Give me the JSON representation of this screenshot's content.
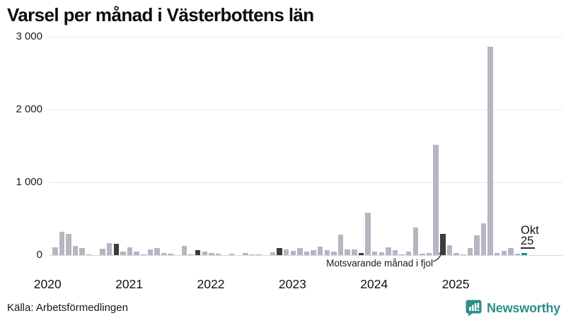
{
  "page": {
    "title": "Varsel per månad i Västerbottens län",
    "source": "Källa: Arbetsförmedlingen",
    "annotation": "Motsvarande månad i fjol",
    "current_month_label": {
      "line1": "Okt",
      "line2": "25"
    },
    "brand": {
      "name": "Newsworthy"
    }
  },
  "colors": {
    "bar": "#b8b4c2",
    "highlight_bar": "#3b3b3d",
    "current_bar": "#13998b",
    "grid": "#e6e6ea",
    "baseline": "#d7d7dc",
    "brand_teal": "#2d8e8b"
  },
  "chart_data": {
    "type": "bar",
    "title": "Varsel per månad i Västerbottens län",
    "xlabel": "",
    "ylabel": "",
    "x_start": "2020-01",
    "x_end": "2025-10",
    "ylim": [
      0,
      3000
    ],
    "grid": true,
    "legend_position": "none",
    "yticks": [
      0,
      1000,
      2000,
      3000
    ],
    "ytick_labels": [
      "0",
      "1 000",
      "2 000",
      "3 000"
    ],
    "year_labels": [
      "2020",
      "2021",
      "2022",
      "2023",
      "2024",
      "2025"
    ],
    "series": [
      {
        "name": "Varsel per månad",
        "values": [
          110,
          320,
          295,
          125,
          100,
          10,
          0,
          90,
          170,
          155,
          50,
          105,
          50,
          10,
          75,
          95,
          30,
          15,
          0,
          130,
          10,
          70,
          50,
          30,
          20,
          0,
          15,
          0,
          30,
          10,
          5,
          0,
          40,
          100,
          80,
          60,
          95,
          50,
          70,
          120,
          65,
          50,
          285,
          80,
          80,
          25,
          580,
          50,
          40,
          105,
          70,
          10,
          45,
          375,
          20,
          30,
          1520,
          290,
          135,
          30,
          10,
          95,
          275,
          435,
          2870,
          30,
          55,
          95,
          20,
          25
        ]
      }
    ],
    "highlighted_months": {
      "label": "Motsvarande månad i fjol",
      "description": "October of each previous year shown in dark",
      "indices": [
        9,
        21,
        33,
        45,
        57
      ]
    },
    "current_month": {
      "label": "Okt 25",
      "index": 69,
      "value": 25
    }
  }
}
